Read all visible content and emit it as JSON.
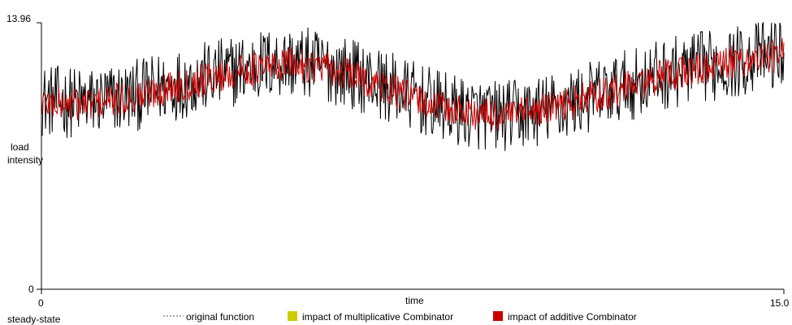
{
  "chart_data": {
    "type": "line",
    "title": "",
    "ylabel_lines": [
      "load",
      "intensity"
    ],
    "xlabel": "time",
    "footer_label": "steady-state",
    "x_range": [
      0,
      15.0
    ],
    "y_range": [
      0,
      13.96
    ],
    "x_tick_labels": [
      "0",
      "15.0"
    ],
    "y_tick_labels": [
      "0",
      "13.96"
    ],
    "grid": false,
    "legend_position": "bottom",
    "series": [
      {
        "name": "original function",
        "color": "#000000",
        "style": "noisy-line",
        "x": [
          0,
          0.5,
          1,
          1.5,
          2,
          2.5,
          3,
          3.5,
          4,
          4.5,
          5,
          5.5,
          6,
          6.5,
          7,
          7.5,
          8,
          8.5,
          9,
          9.5,
          10,
          10.5,
          11,
          11.5,
          12,
          12.5,
          13,
          13.5,
          14,
          14.5,
          15
        ],
        "y": [
          9.9,
          9.8,
          9.8,
          10.0,
          10.2,
          10.6,
          10.9,
          11.2,
          11.5,
          11.8,
          11.9,
          11.8,
          11.5,
          11.1,
          10.6,
          10.1,
          9.6,
          9.3,
          9.1,
          9.1,
          9.3,
          9.6,
          10.0,
          10.4,
          10.8,
          11.2,
          11.5,
          11.7,
          11.9,
          12.2,
          12.4
        ],
        "amplitude": 1.9
      },
      {
        "name": "impact of additive Combinator",
        "color": "#cc0000",
        "style": "noisy-line",
        "x": [
          0,
          0.5,
          1,
          1.5,
          2,
          2.5,
          3,
          3.5,
          4,
          4.5,
          5,
          5.5,
          6,
          6.5,
          7,
          7.5,
          8,
          8.5,
          9,
          9.5,
          10,
          10.5,
          11,
          11.5,
          12,
          12.5,
          13,
          13.5,
          14,
          14.5,
          15
        ],
        "y": [
          9.8,
          9.7,
          9.7,
          9.9,
          10.1,
          10.5,
          10.8,
          11.1,
          11.4,
          11.6,
          11.8,
          11.7,
          11.4,
          11.0,
          10.5,
          10.0,
          9.6,
          9.3,
          9.1,
          9.1,
          9.3,
          9.6,
          10.0,
          10.3,
          10.7,
          11.1,
          11.4,
          11.6,
          11.9,
          12.1,
          12.3
        ],
        "amplitude": 0.9
      },
      {
        "name": "impact of multiplicative Combinator",
        "color": "#cccc00",
        "style": "hidden",
        "x": [],
        "y": []
      }
    ],
    "legend": [
      {
        "label": "original function",
        "swatch": "dashed-line",
        "color": "#555555"
      },
      {
        "label": "impact of multiplicative Combinator",
        "swatch": "box",
        "color": "#cccc00"
      },
      {
        "label": "impact of additive Combinator",
        "swatch": "box",
        "color": "#cc0000"
      }
    ]
  }
}
